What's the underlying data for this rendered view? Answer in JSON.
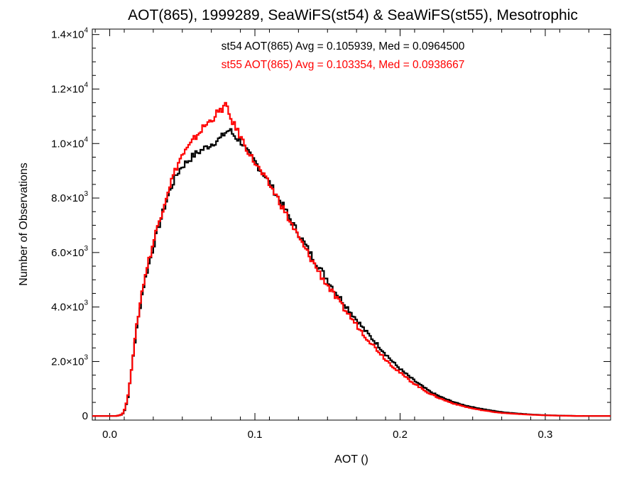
{
  "chart_data": {
    "type": "line",
    "title": "AOT(865), 1999289, SeaWiFS(st54) & SeaWiFS(st55), Mesotrophic",
    "xlabel": "AOT ()",
    "ylabel": "Number of Observations",
    "xlim": [
      -0.012,
      0.345
    ],
    "ylim": [
      -150,
      14200
    ],
    "x_ticks": [
      {
        "value": 0.0,
        "label": "0.0"
      },
      {
        "value": 0.1,
        "label": "0.1"
      },
      {
        "value": 0.2,
        "label": "0.2"
      },
      {
        "value": 0.3,
        "label": "0.3"
      }
    ],
    "y_ticks": [
      {
        "value": 0,
        "mant": "0",
        "exp": ""
      },
      {
        "value": 2000,
        "mant": "2.0×10",
        "exp": "3"
      },
      {
        "value": 4000,
        "mant": "4.0×10",
        "exp": "3"
      },
      {
        "value": 6000,
        "mant": "6.0×10",
        "exp": "3"
      },
      {
        "value": 8000,
        "mant": "8.0×10",
        "exp": "3"
      },
      {
        "value": 10000,
        "mant": "1.0×10",
        "exp": "4"
      },
      {
        "value": 12000,
        "mant": "1.2×10",
        "exp": "4"
      },
      {
        "value": 14000,
        "mant": "1.4×10",
        "exp": "4"
      }
    ],
    "step_style": "histogram",
    "series": [
      {
        "name": "st54",
        "color": "#000000",
        "legend": "st54 AOT(865) Avg = 0.105939, Med = 0.0964500",
        "x": [
          -0.012,
          0.004,
          0.008,
          0.01,
          0.012,
          0.014,
          0.016,
          0.018,
          0.02,
          0.022,
          0.025,
          0.028,
          0.031,
          0.034,
          0.037,
          0.04,
          0.043,
          0.046,
          0.049,
          0.052,
          0.055,
          0.058,
          0.061,
          0.064,
          0.067,
          0.07,
          0.073,
          0.076,
          0.079,
          0.082,
          0.085,
          0.088,
          0.091,
          0.094,
          0.097,
          0.1,
          0.103,
          0.106,
          0.11,
          0.115,
          0.12,
          0.125,
          0.13,
          0.135,
          0.14,
          0.145,
          0.15,
          0.155,
          0.16,
          0.165,
          0.17,
          0.175,
          0.18,
          0.185,
          0.19,
          0.195,
          0.2,
          0.205,
          0.21,
          0.215,
          0.22,
          0.225,
          0.23,
          0.235,
          0.24,
          0.245,
          0.25,
          0.255,
          0.26,
          0.265,
          0.27,
          0.28,
          0.29,
          0.3,
          0.31,
          0.32,
          0.33,
          0.345
        ],
        "y": [
          0,
          0,
          50,
          250,
          700,
          1500,
          2400,
          3200,
          3900,
          4600,
          5300,
          5900,
          6550,
          7100,
          7650,
          8150,
          8550,
          8900,
          9150,
          9300,
          9450,
          9600,
          9700,
          9800,
          9900,
          10000,
          10100,
          10200,
          10400,
          10500,
          10300,
          10150,
          10000,
          9700,
          9500,
          9300,
          9050,
          8850,
          8500,
          8050,
          7600,
          7100,
          6650,
          6200,
          5750,
          5350,
          4950,
          4550,
          4200,
          3850,
          3500,
          3150,
          2850,
          2550,
          2250,
          1950,
          1700,
          1480,
          1270,
          1080,
          900,
          760,
          640,
          540,
          450,
          380,
          320,
          270,
          220,
          180,
          140,
          95,
          55,
          30,
          15,
          5,
          0,
          0
        ]
      },
      {
        "name": "st55",
        "color": "#ff0000",
        "legend": "st55 AOT(865) Avg = 0.103354, Med = 0.0938667",
        "x": [
          -0.012,
          0.004,
          0.008,
          0.01,
          0.012,
          0.014,
          0.016,
          0.018,
          0.02,
          0.022,
          0.025,
          0.028,
          0.031,
          0.034,
          0.037,
          0.04,
          0.043,
          0.046,
          0.049,
          0.052,
          0.055,
          0.058,
          0.061,
          0.064,
          0.067,
          0.07,
          0.073,
          0.076,
          0.079,
          0.082,
          0.085,
          0.088,
          0.091,
          0.094,
          0.097,
          0.1,
          0.103,
          0.106,
          0.11,
          0.115,
          0.12,
          0.125,
          0.13,
          0.135,
          0.14,
          0.145,
          0.15,
          0.155,
          0.16,
          0.165,
          0.17,
          0.175,
          0.18,
          0.185,
          0.19,
          0.195,
          0.2,
          0.205,
          0.21,
          0.215,
          0.22,
          0.225,
          0.23,
          0.235,
          0.24,
          0.245,
          0.25,
          0.255,
          0.26,
          0.265,
          0.27,
          0.28,
          0.29,
          0.3,
          0.31,
          0.32,
          0.33,
          0.345
        ],
        "y": [
          0,
          0,
          60,
          280,
          750,
          1550,
          2450,
          3300,
          4000,
          4700,
          5450,
          6050,
          6700,
          7250,
          7800,
          8350,
          8800,
          9200,
          9550,
          9750,
          9950,
          10200,
          10400,
          10600,
          10750,
          10900,
          11100,
          11200,
          11450,
          11000,
          10700,
          10400,
          10100,
          9800,
          9500,
          9250,
          9000,
          8750,
          8450,
          8000,
          7500,
          7000,
          6500,
          6050,
          5600,
          5150,
          4750,
          4350,
          4000,
          3650,
          3300,
          2950,
          2650,
          2350,
          2050,
          1800,
          1560,
          1350,
          1160,
          980,
          820,
          690,
          580,
          480,
          400,
          330,
          270,
          220,
          180,
          140,
          110,
          75,
          45,
          25,
          12,
          4,
          0,
          0
        ]
      }
    ]
  }
}
